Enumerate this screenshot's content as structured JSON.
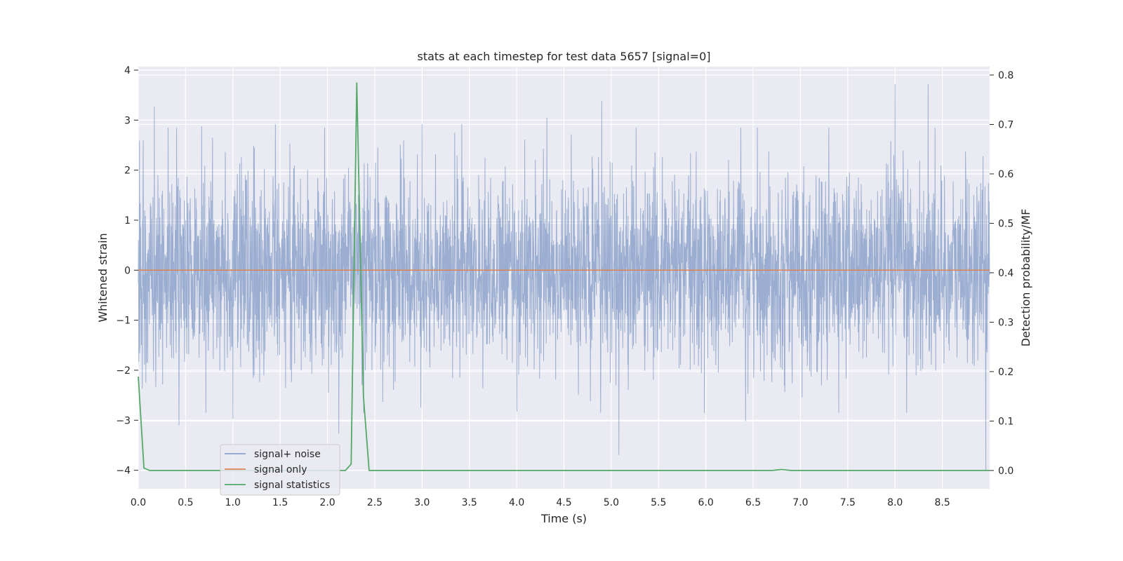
{
  "chart_data": {
    "type": "line",
    "title": "stats at each timestep for test data 5657 [signal=0]",
    "xlabel": "Time (s)",
    "ylabel": "Whitened strain",
    "y2label": "Detection probability/MF",
    "xlim": [
      0.0,
      9.0
    ],
    "ylim": [
      -4.37,
      4.07
    ],
    "y2lim": [
      -0.037,
      0.817
    ],
    "xticks": [
      "0.0",
      "0.5",
      "1.0",
      "1.5",
      "2.0",
      "2.5",
      "3.0",
      "3.5",
      "4.0",
      "4.5",
      "5.0",
      "5.5",
      "6.0",
      "6.5",
      "7.0",
      "7.5",
      "8.0",
      "8.5"
    ],
    "yticks": [
      "4",
      "3",
      "2",
      "1",
      "0",
      "−1",
      "−2",
      "−3",
      "−4"
    ],
    "y2ticks": [
      "0.8",
      "0.7",
      "0.6",
      "0.5",
      "0.4",
      "0.3",
      "0.2",
      "0.1",
      "0.0"
    ],
    "grid": true,
    "legend_position": "lower-left",
    "colors": {
      "signal_noise": "#4c72b0",
      "signal_only": "#dd8452",
      "signal_statistics": "#55a868",
      "plot_bg": "#eaeaf2",
      "grid": "#ffffff"
    },
    "series": [
      {
        "name": "signal+ noise",
        "description_values": "dense whitened noise, typical range about -2 to 2, notable spikes",
        "spikes": [
          {
            "x": 0.17,
            "y": 3.27
          },
          {
            "x": 0.43,
            "y": -3.1
          },
          {
            "x": 0.67,
            "y": 2.88
          },
          {
            "x": 1.0,
            "y": -2.97
          },
          {
            "x": 1.45,
            "y": 2.92
          },
          {
            "x": 2.12,
            "y": -3.27
          },
          {
            "x": 3.0,
            "y": 2.92
          },
          {
            "x": 3.42,
            "y": 2.92
          },
          {
            "x": 4.32,
            "y": 3.05
          },
          {
            "x": 4.9,
            "y": 3.38
          },
          {
            "x": 5.08,
            "y": -3.7
          },
          {
            "x": 6.42,
            "y": -3.02
          },
          {
            "x": 8.0,
            "y": 3.72
          },
          {
            "x": 8.35,
            "y": 3.72
          },
          {
            "x": 8.96,
            "y": -4.0
          }
        ]
      },
      {
        "name": "signal only",
        "x": [
          0.0,
          9.0
        ],
        "y": [
          0.0,
          0.0
        ]
      },
      {
        "name": "signal statistics",
        "axis": "right",
        "x": [
          0.0,
          0.06,
          0.12,
          0.5,
          1.0,
          1.5,
          2.0,
          2.1,
          2.19,
          2.25,
          2.31,
          2.38,
          2.44,
          2.5,
          3.0,
          4.0,
          5.0,
          6.0,
          6.7,
          6.8,
          6.9,
          7.5,
          8.0,
          9.0
        ],
        "y": [
          0.19,
          0.005,
          0.0,
          0.0,
          0.0,
          0.0,
          0.0,
          0.0,
          0.0,
          0.013,
          0.785,
          0.15,
          0.0,
          0.0,
          0.0,
          0.0,
          0.0,
          0.0,
          0.0,
          0.002,
          0.0,
          0.0,
          0.0,
          0.0
        ]
      }
    ]
  }
}
